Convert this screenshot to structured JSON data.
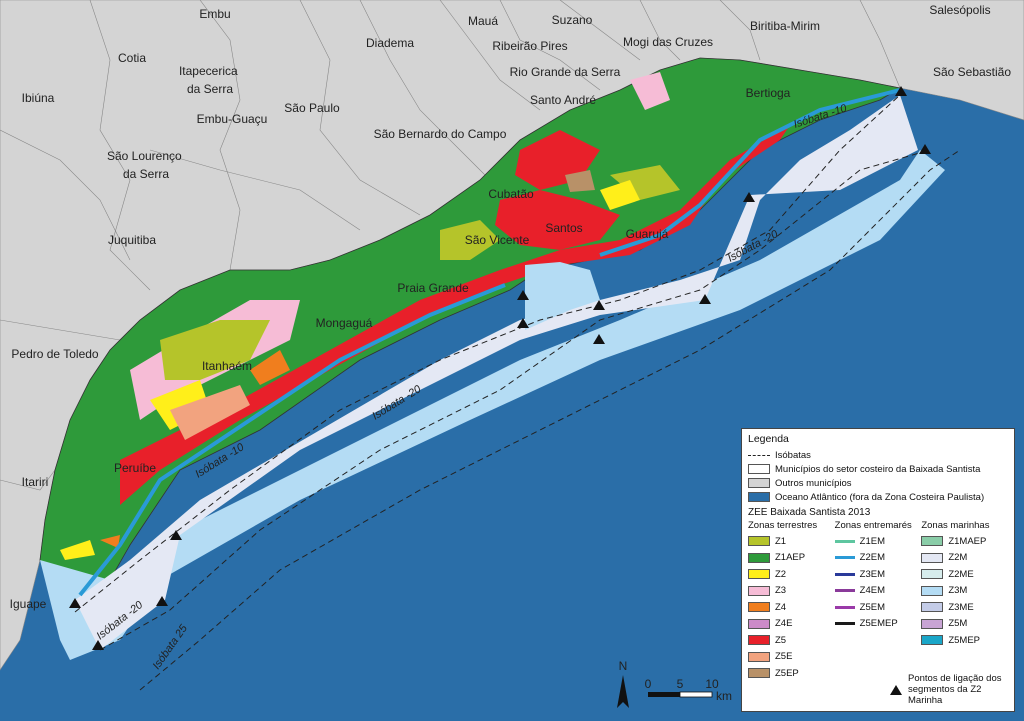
{
  "municipalities_other": [
    {
      "name": "Embu"
    },
    {
      "name": "Mauá"
    },
    {
      "name": "Suzano"
    },
    {
      "name": "Biritiba-Mirim"
    },
    {
      "name": "Salesópolis"
    },
    {
      "name": "Cotia"
    },
    {
      "name": "Itapecerica\nda Serra"
    },
    {
      "name": "Diadema"
    },
    {
      "name": "Ribeirão Pires"
    },
    {
      "name": "Mogi das Cruzes"
    },
    {
      "name": "Rio Grande da Serra"
    },
    {
      "name": "São Sebastião"
    },
    {
      "name": "Ibiúna"
    },
    {
      "name": "São Paulo"
    },
    {
      "name": "Santo André"
    },
    {
      "name": "São Bernardo do Campo"
    },
    {
      "name": "Embu-Guaçu"
    },
    {
      "name": "São Lourenço\nda Serra"
    },
    {
      "name": "Juquitiba"
    },
    {
      "name": "Pedro de Toledo"
    },
    {
      "name": "Itariri"
    },
    {
      "name": "Iguape"
    }
  ],
  "municipalities_coastal": [
    {
      "name": "Bertioga"
    },
    {
      "name": "Cubatão"
    },
    {
      "name": "Santos"
    },
    {
      "name": "São Vicente"
    },
    {
      "name": "Guarujá"
    },
    {
      "name": "Praia Grande"
    },
    {
      "name": "Mongaguá"
    },
    {
      "name": "Itanhaém"
    },
    {
      "name": "Peruíbe"
    }
  ],
  "isobath_labels": [
    "Isóbata -10",
    "Isóbata -20",
    "Isóbata -10",
    "Isóbata -20",
    "Isóbata -20",
    "Isóbata 25"
  ],
  "scale": {
    "ticks": [
      "0",
      "5",
      "10"
    ],
    "unit": "km"
  },
  "north": "N",
  "legend": {
    "title": "Legenda",
    "isobaths": "Isóbatas",
    "coastal_munis": "Municípios do setor costeiro da Baixada Santista",
    "other_munis": "Outros municípios",
    "ocean": "Oceano Atlântico (fora da Zona Costeira Paulista)",
    "zee_title": "ZEE Baixada Santista 2013",
    "col_terrestrial": "Zonas terrestres",
    "col_intertidal": "Zonas entremarés",
    "col_marine": "Zonas marinhas",
    "terrestrial": [
      {
        "label": "Z1",
        "color": "#b5c42a"
      },
      {
        "label": "Z1AEP",
        "color": "#2e9a3a"
      },
      {
        "label": "Z2",
        "color": "#ffef1a"
      },
      {
        "label": "Z3",
        "color": "#f6bcd6"
      },
      {
        "label": "Z4",
        "color": "#f07e1e"
      },
      {
        "label": "Z4E",
        "color": "#cc8bc8"
      },
      {
        "label": "Z5",
        "color": "#e8202a"
      },
      {
        "label": "Z5E",
        "color": "#f2a37f"
      },
      {
        "label": "Z5EP",
        "color": "#b89168"
      }
    ],
    "intertidal": [
      {
        "label": "Z1EM",
        "color": "#5ec6a0"
      },
      {
        "label": "Z2EM",
        "color": "#2a9ad6"
      },
      {
        "label": "Z3EM",
        "color": "#2a3a9a"
      },
      {
        "label": "Z4EM",
        "color": "#8a3a9a"
      },
      {
        "label": "Z5EM",
        "color": "#9a3aa8"
      },
      {
        "label": "Z5EMEP",
        "color": "#1a1a1a"
      }
    ],
    "marine": [
      {
        "label": "Z1MAEP",
        "color": "#8acda8"
      },
      {
        "label": "Z2M",
        "color": "#e4e8f4"
      },
      {
        "label": "Z2ME",
        "color": "#d6ecec"
      },
      {
        "label": "Z3M",
        "color": "#b4dcf4"
      },
      {
        "label": "Z3ME",
        "color": "#c4cce8"
      },
      {
        "label": "Z5M",
        "color": "#c8a4d4"
      },
      {
        "label": "Z5MEP",
        "color": "#1aa6c8"
      }
    ],
    "link_points": "Pontos de ligação dos\nsegmentos da Z2 Marinha"
  },
  "colors": {
    "ocean": "#2a6ea8",
    "land_other": "#d4d4d4",
    "coastal_bg": "#2e9a3a"
  }
}
